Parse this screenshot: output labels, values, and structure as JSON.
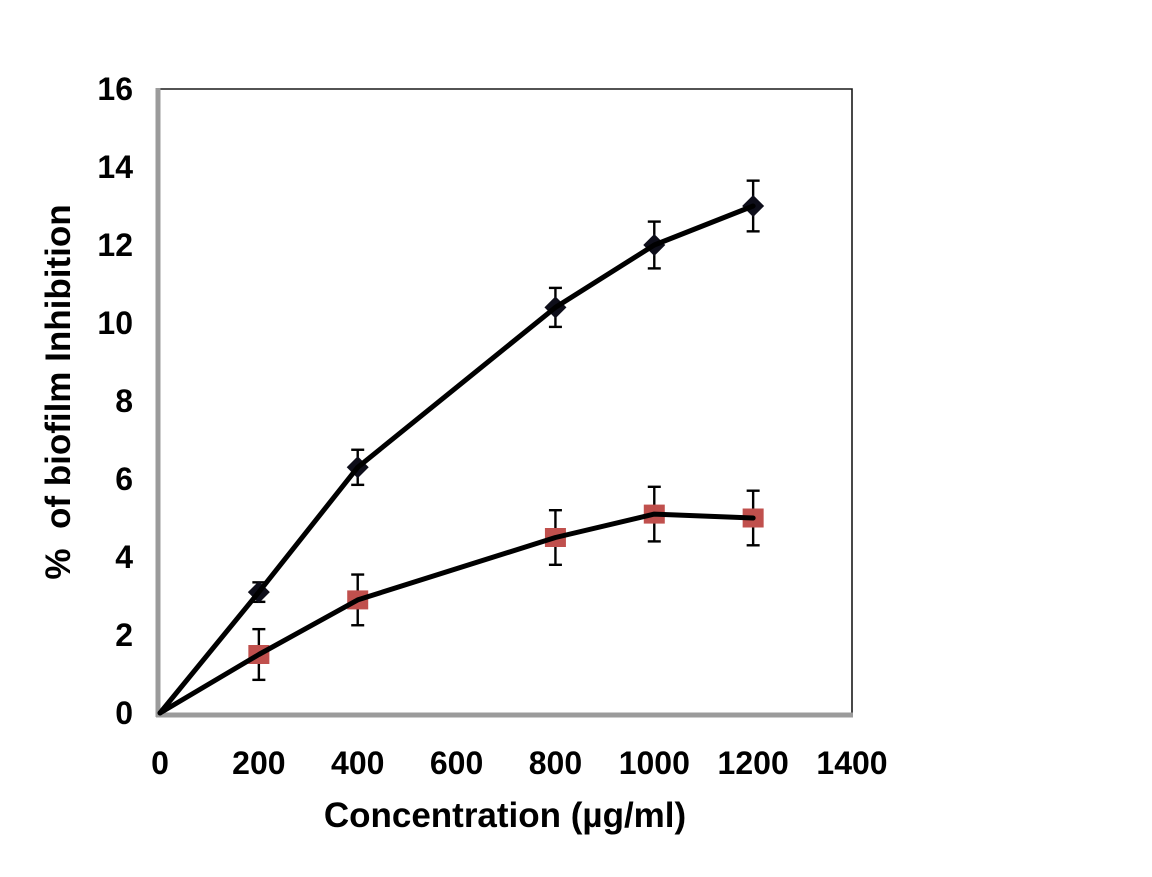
{
  "figure": {
    "background": "#ffffff"
  },
  "chart_data": {
    "type": "line",
    "title": "",
    "xlabel": "Concentration (µg/ml)",
    "ylabel": "%  of biofilm Inhibition",
    "xlim": [
      0,
      1400
    ],
    "ylim": [
      0,
      16
    ],
    "x_ticks": [
      0,
      200,
      400,
      600,
      800,
      1000,
      1200,
      1400
    ],
    "y_ticks": [
      0,
      2,
      4,
      6,
      8,
      10,
      12,
      14,
      16
    ],
    "grid": false,
    "legend": "none",
    "error_bars": true,
    "x": [
      0,
      200,
      400,
      800,
      1000,
      1200
    ],
    "series": [
      {
        "name": "diamond-series",
        "marker": "diamond",
        "marker_color": "#0e0e1a",
        "line_color": "#000000",
        "values": [
          0,
          3.1,
          6.3,
          10.4,
          12.0,
          13.0
        ],
        "errors": [
          0,
          0.25,
          0.45,
          0.5,
          0.6,
          0.65
        ],
        "show_marker": [
          false,
          true,
          true,
          true,
          true,
          true
        ]
      },
      {
        "name": "square-series",
        "marker": "square",
        "marker_color": "#c0504d",
        "line_color": "#000000",
        "values": [
          0,
          1.5,
          2.9,
          4.5,
          5.1,
          5.0
        ],
        "errors": [
          0,
          0.65,
          0.65,
          0.7,
          0.7,
          0.7
        ],
        "show_marker": [
          false,
          true,
          true,
          true,
          true,
          true
        ]
      }
    ],
    "colors": {
      "axis_line": "#9b9b9b",
      "plot_border": "#1a1a1a",
      "error_bar": "#000000",
      "text": "#000000",
      "plot_background": "#ffffff"
    }
  }
}
